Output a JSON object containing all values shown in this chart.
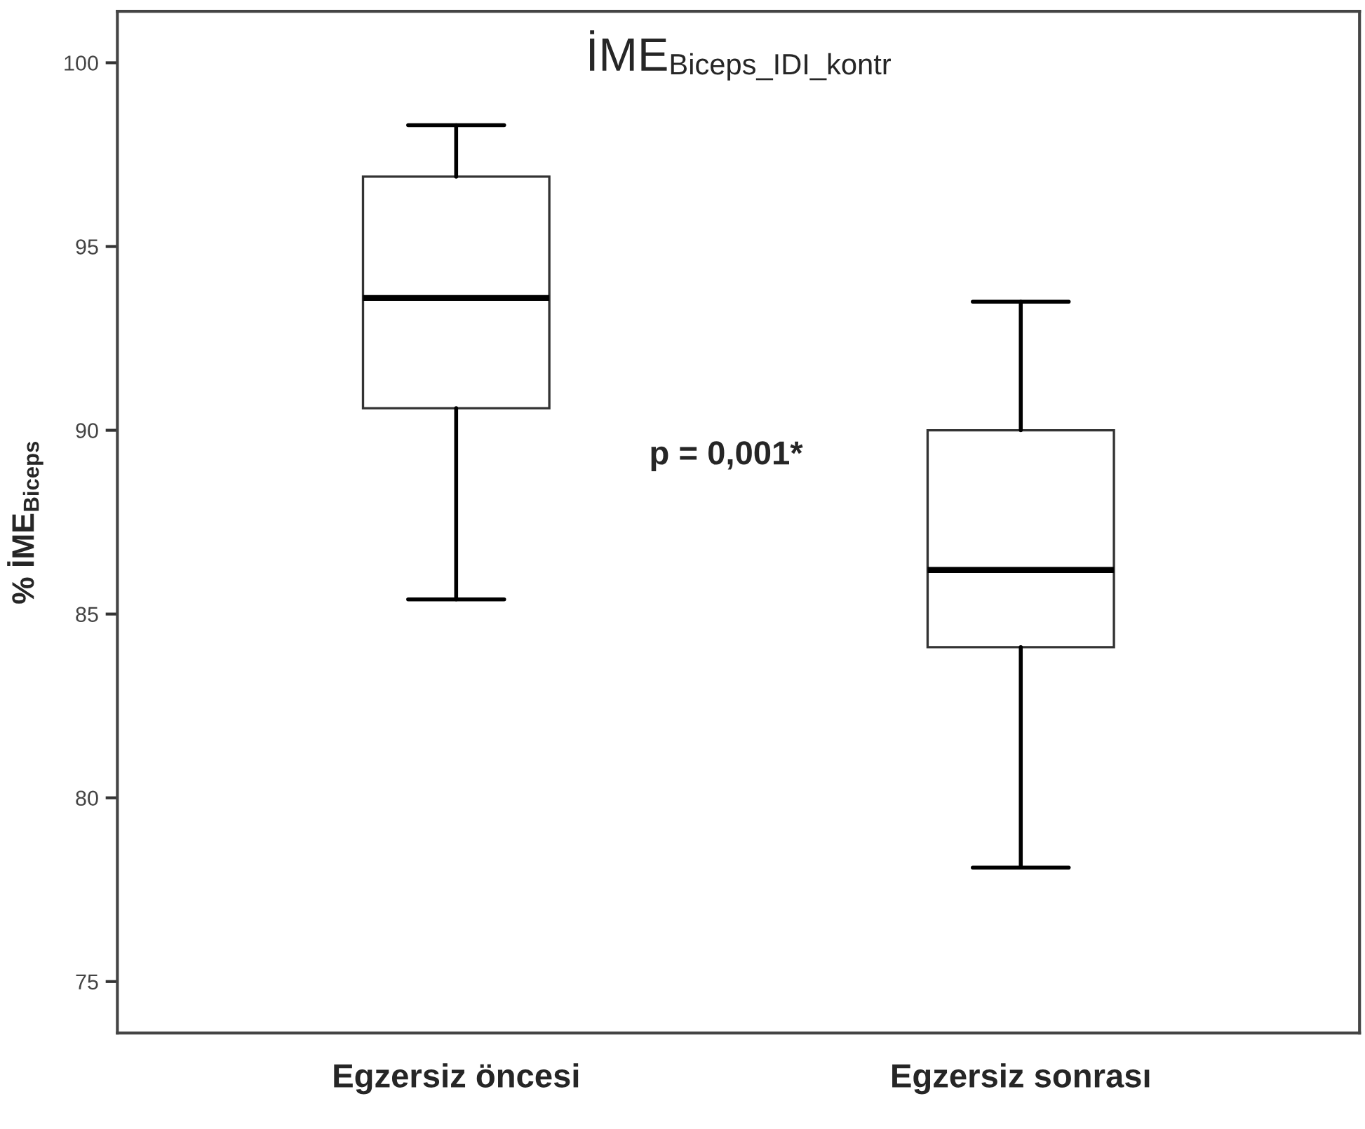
{
  "chart_data": {
    "type": "box",
    "title": "İME$_{Biceps_IDI_kontr}$",
    "ylabel": "% İME$_{Biceps}$",
    "categories": [
      "Egzersiz öncesi",
      "Egzersiz sonrası"
    ],
    "boxes": [
      {
        "low": 85.4,
        "q1": 90.6,
        "median": 93.6,
        "q3": 96.9,
        "high": 98.3
      },
      {
        "low": 78.1,
        "q1": 84.1,
        "median": 86.2,
        "q3": 90.0,
        "high": 93.5
      }
    ],
    "annotations": [
      "p = 0,001*"
    ],
    "ylim": [
      73.6,
      101.4
    ],
    "yticks": [
      75,
      80,
      85,
      90,
      95,
      100
    ],
    "grid": false
  }
}
